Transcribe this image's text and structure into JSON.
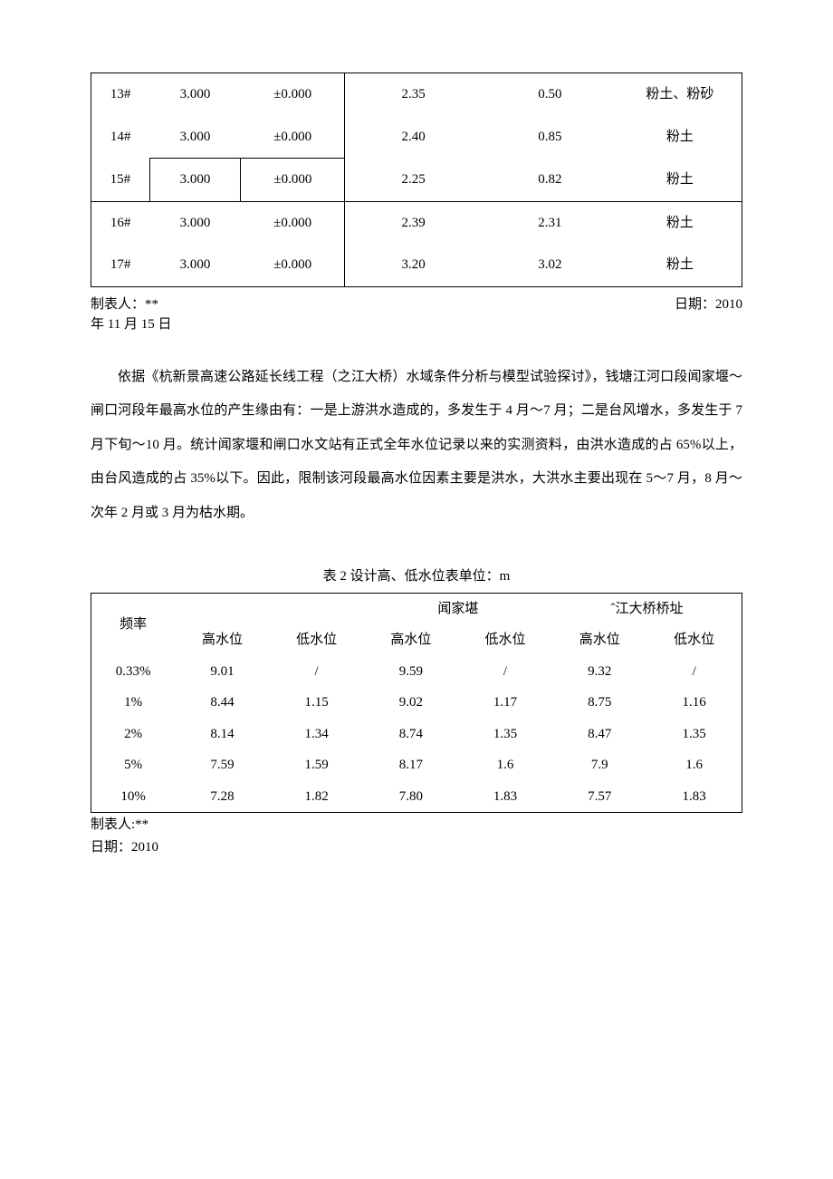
{
  "table1": {
    "rows": [
      {
        "id": "13#",
        "a": "3.000",
        "b": "±0.000",
        "c": "2.35",
        "d": "0.50",
        "e": "粉土、粉砂"
      },
      {
        "id": "14#",
        "a": "3.000",
        "b": "±0.000",
        "c": "2.40",
        "d": "0.85",
        "e": "粉土"
      },
      {
        "id": "15#",
        "a": "3.000",
        "b": "±0.000",
        "c": "2.25",
        "d": "0.82",
        "e": "粉土"
      },
      {
        "id": "16#",
        "a": "3.000",
        "b": "±0.000",
        "c": "2.39",
        "d": "2.31",
        "e": "粉土"
      },
      {
        "id": "17#",
        "a": "3.000",
        "b": "±0.000",
        "c": "3.20",
        "d": "3.02",
        "e": "粉土"
      }
    ]
  },
  "footer1": {
    "maker_label": "制表人：**",
    "date_label": "日期：2010",
    "date_line2": "年 11 月 15 日"
  },
  "paragraph": "依据《杭新景高速公路延长线工程（之江大桥）水域条件分析与模型试验探讨》，钱塘江河口段闻家堰～闸口河段年最高水位的产生缘由有：一是上游洪水造成的，多发生于 4 月～7 月；二是台风增水，多发生于 7 月下旬～10 月。统计闻家堰和闸口水文站有正式全年水位记录以来的实测资料，由洪水造成的占 65%以上，由台风造成的占 35%以下。因此，限制该河段最高水位因素主要是洪水，大洪水主要出现在 5～7 月，8 月～次年 2 月或 3 月为枯水期。",
  "table2": {
    "caption": "表 2 设计高、低水位表单位：m",
    "header": {
      "freq": "频率",
      "site2": "闻家堪",
      "site3": "ˆ江大桥桥址",
      "high": "高水位",
      "low": "低水位"
    },
    "rows": [
      {
        "freq": "0.33%",
        "h1": "9.01",
        "l1": "/",
        "h2": "9.59",
        "l2": "/",
        "h3": "9.32",
        "l3": "/"
      },
      {
        "freq": "1%",
        "h1": "8.44",
        "l1": "1.15",
        "h2": "9.02",
        "l2": "1.17",
        "h3": "8.75",
        "l3": "1.16"
      },
      {
        "freq": "2%",
        "h1": "8.14",
        "l1": "1.34",
        "h2": "8.74",
        "l2": "1.35",
        "h3": "8.47",
        "l3": "1.35"
      },
      {
        "freq": "5%",
        "h1": "7.59",
        "l1": "1.59",
        "h2": "8.17",
        "l2": "1.6",
        "h3": "7.9",
        "l3": "1.6"
      },
      {
        "freq": "10%",
        "h1": "7.28",
        "l1": "1.82",
        "h2": "7.80",
        "l2": "1.83",
        "h3": "7.57",
        "l3": "1.83"
      }
    ]
  },
  "footer2": {
    "maker": "制表人:**",
    "date": "日期：2010"
  },
  "colors": {
    "text": "#000000",
    "border": "#000000",
    "background": "#ffffff"
  },
  "typography": {
    "font_family": "SimSun",
    "body_fontsize": 15,
    "line_height_paragraph": 2.5
  }
}
